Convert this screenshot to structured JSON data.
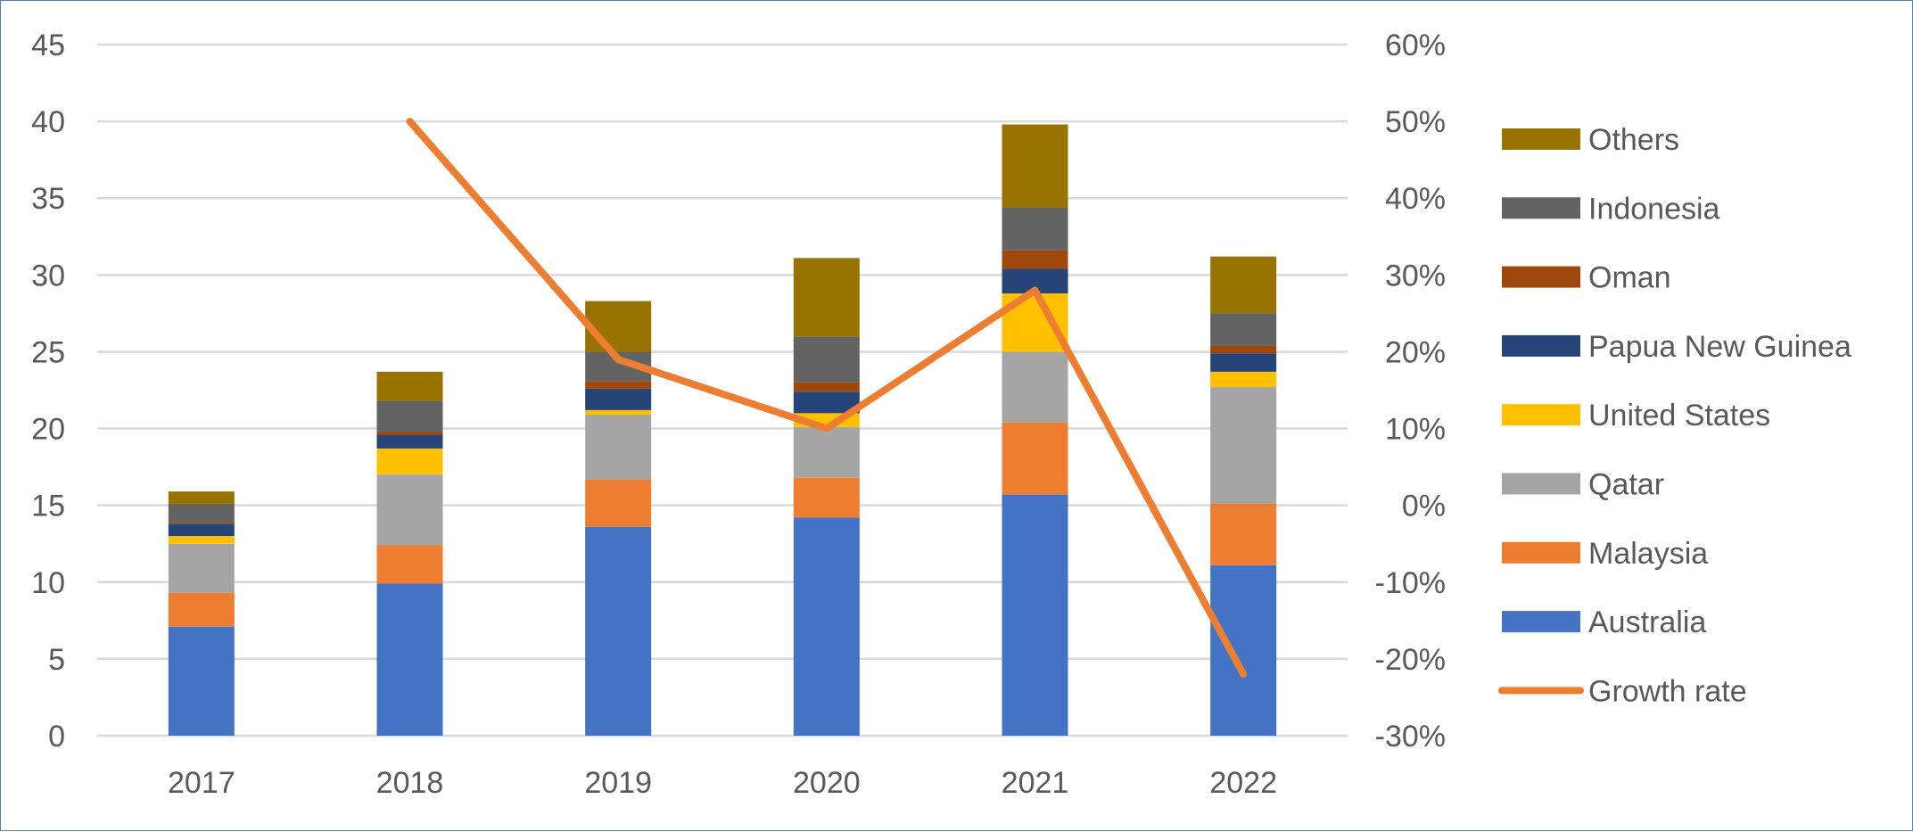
{
  "chart_data": {
    "type": "bar",
    "stacked": true,
    "categories": [
      "2017",
      "2018",
      "2019",
      "2020",
      "2021",
      "2022"
    ],
    "y_left": {
      "ticks": [
        "0",
        "5",
        "10",
        "15",
        "20",
        "25",
        "30",
        "35",
        "40",
        "45"
      ],
      "ylim": [
        0,
        45
      ]
    },
    "y_right": {
      "ticks": [
        "-30%",
        "-20%",
        "-10%",
        "0%",
        "10%",
        "20%",
        "30%",
        "40%",
        "50%",
        "60%"
      ],
      "ylim": [
        -30,
        60
      ]
    },
    "grid": true,
    "legend_position": "right",
    "series": [
      {
        "name": "Australia",
        "color": "#4472c4",
        "values": [
          7.1,
          9.9,
          13.6,
          14.2,
          15.7,
          11.1
        ]
      },
      {
        "name": "Malaysia",
        "color": "#ed7d31",
        "values": [
          2.2,
          2.5,
          3.1,
          2.6,
          4.7,
          4.0
        ]
      },
      {
        "name": "Qatar",
        "color": "#a5a5a5",
        "values": [
          3.2,
          4.6,
          4.2,
          3.3,
          4.6,
          7.6
        ]
      },
      {
        "name": "United States",
        "color": "#ffc000",
        "values": [
          0.5,
          1.7,
          0.3,
          0.9,
          3.8,
          1.0
        ]
      },
      {
        "name": "Papua New Guinea",
        "color": "#264478",
        "values": [
          0.8,
          0.9,
          1.4,
          1.4,
          1.6,
          1.2
        ]
      },
      {
        "name": "Oman",
        "color": "#9e480e",
        "values": [
          0.1,
          0.2,
          0.5,
          0.6,
          1.2,
          0.5
        ]
      },
      {
        "name": "Indonesia",
        "color": "#636363",
        "values": [
          1.2,
          2.0,
          1.9,
          3.0,
          2.8,
          2.1
        ]
      },
      {
        "name": "Others",
        "color": "#997300",
        "values": [
          0.8,
          1.9,
          3.3,
          5.1,
          5.4,
          3.7
        ]
      }
    ],
    "line_series": {
      "name": "Growth rate",
      "color": "#ed7d31",
      "axis": "right",
      "values": [
        null,
        50,
        19,
        10,
        28,
        -22
      ]
    }
  }
}
